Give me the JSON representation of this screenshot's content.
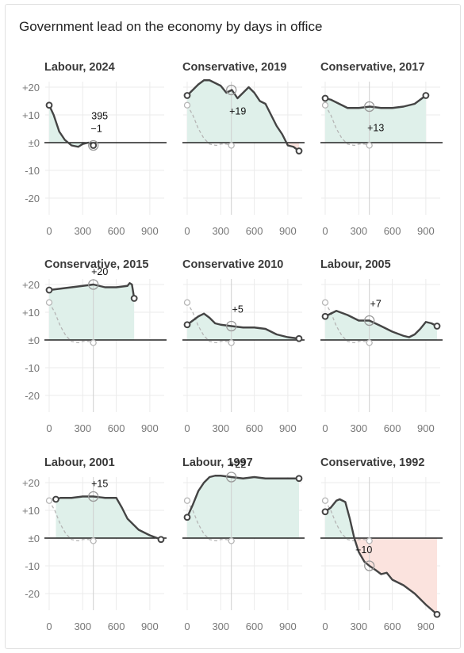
{
  "header": {
    "title": "Government lead on the economy by days in office"
  },
  "colors": {
    "positive_fill": "#dff0ea",
    "negative_fill": "#fbe3de",
    "line": "#444444",
    "reference_line": "#b5b5b5",
    "marker": "#9a9a9a"
  },
  "chart_data": [
    {
      "type": "area",
      "title": "Labour, 2024",
      "x_ticks": [
        "0",
        "300",
        "600",
        "900"
      ],
      "y_ticks": [
        "+20",
        "+10",
        "±0",
        "-10",
        "-20"
      ],
      "xlim": [
        0,
        1000
      ],
      "ylim": [
        -25,
        22
      ],
      "x": [
        0,
        40,
        90,
        140,
        200,
        260,
        300,
        350,
        395
      ],
      "y": [
        13.5,
        10,
        4,
        1,
        -1,
        -1.5,
        -0.5,
        0,
        -1
      ],
      "annotation": {
        "x": 395,
        "y": -1,
        "label": "395\n−1"
      }
    },
    {
      "type": "area",
      "title": "Conservative, 2019",
      "x_ticks": [
        "0",
        "300",
        "600",
        "900"
      ],
      "y_ticks": [],
      "xlim": [
        0,
        1000
      ],
      "ylim": [
        -25,
        22
      ],
      "x": [
        0,
        50,
        100,
        150,
        200,
        250,
        300,
        350,
        400,
        450,
        500,
        550,
        600,
        650,
        700,
        750,
        800,
        850,
        900,
        950,
        1000
      ],
      "y": [
        17,
        19,
        21,
        22.5,
        22.5,
        21.5,
        20.5,
        18,
        19,
        16,
        18,
        20,
        18,
        15,
        14,
        10,
        6,
        3,
        -1,
        -1.5,
        -3
      ],
      "annotation": {
        "x": 395,
        "y": 19,
        "label": "+19"
      }
    },
    {
      "type": "area",
      "title": "Conservative, 2017",
      "x_ticks": [
        "0",
        "300",
        "600",
        "900"
      ],
      "y_ticks": [],
      "xlim": [
        0,
        1000
      ],
      "ylim": [
        -25,
        22
      ],
      "x": [
        0,
        50,
        100,
        150,
        200,
        300,
        400,
        500,
        600,
        700,
        800,
        850,
        900
      ],
      "y": [
        16,
        15.5,
        14.5,
        13.5,
        12.5,
        12.5,
        13,
        12.5,
        12.5,
        13,
        14,
        15.5,
        17
      ],
      "annotation": {
        "x": 395,
        "y": 13,
        "label": "+13"
      }
    },
    {
      "type": "area",
      "title": "Conservative, 2015",
      "x_ticks": [
        "0",
        "300",
        "600",
        "900"
      ],
      "y_ticks": [
        "+20",
        "+10",
        "±0",
        "-10",
        "-20"
      ],
      "xlim": [
        0,
        1000
      ],
      "ylim": [
        -25,
        22
      ],
      "x": [
        0,
        100,
        200,
        300,
        395,
        500,
        600,
        700,
        720,
        740,
        760
      ],
      "y": [
        18,
        18.5,
        19,
        19.5,
        20,
        19,
        19,
        19.5,
        20.5,
        20,
        15
      ],
      "annotation": {
        "x": 395,
        "y": 20,
        "label": "+20"
      }
    },
    {
      "type": "area",
      "title": "Conservative 2010",
      "x_ticks": [
        "0",
        "300",
        "600",
        "900"
      ],
      "y_ticks": [],
      "xlim": [
        0,
        1000
      ],
      "ylim": [
        -25,
        22
      ],
      "x": [
        0,
        50,
        100,
        150,
        200,
        250,
        300,
        395,
        500,
        600,
        700,
        800,
        900,
        1000
      ],
      "y": [
        5.5,
        7,
        8.5,
        9.5,
        8,
        6,
        5.5,
        5,
        4.5,
        4.5,
        4,
        2,
        1,
        0.5
      ],
      "annotation": {
        "x": 395,
        "y": 5,
        "label": "+5"
      }
    },
    {
      "type": "area",
      "title": "Labour, 2005",
      "x_ticks": [
        "0",
        "300",
        "600",
        "900"
      ],
      "y_ticks": [],
      "xlim": [
        0,
        1000
      ],
      "ylim": [
        -25,
        22
      ],
      "x": [
        0,
        50,
        100,
        200,
        300,
        395,
        500,
        600,
        700,
        750,
        800,
        850,
        900,
        950,
        1000
      ],
      "y": [
        8.5,
        9.5,
        10.5,
        9,
        7,
        7,
        5,
        3,
        1.5,
        1,
        2,
        4,
        6.5,
        6,
        5
      ],
      "annotation": {
        "x": 395,
        "y": 7,
        "label": "+7"
      }
    },
    {
      "type": "area",
      "title": "Labour, 2001",
      "x_ticks": [
        "0",
        "300",
        "600",
        "900"
      ],
      "y_ticks": [
        "+20",
        "+10",
        "±0",
        "-10",
        "-20"
      ],
      "xlim": [
        0,
        1000
      ],
      "ylim": [
        -25,
        22
      ],
      "x": [
        60,
        100,
        200,
        300,
        395,
        500,
        600,
        650,
        700,
        800,
        900,
        1000
      ],
      "y": [
        14,
        14.5,
        14.5,
        15,
        15,
        14.5,
        14.5,
        11,
        7,
        3,
        1,
        -0.5
      ],
      "annotation": {
        "x": 395,
        "y": 15,
        "label": "+15"
      }
    },
    {
      "type": "area",
      "title": "Labour, 1997",
      "x_ticks": [
        "0",
        "300",
        "600",
        "900"
      ],
      "y_ticks": [],
      "xlim": [
        0,
        1000
      ],
      "ylim": [
        -25,
        22
      ],
      "x": [
        0,
        50,
        100,
        150,
        200,
        250,
        300,
        395,
        500,
        600,
        700,
        800,
        900,
        1000
      ],
      "y": [
        7.5,
        12,
        17,
        20,
        22,
        22.5,
        22.5,
        22,
        21.5,
        22,
        21.5,
        21.5,
        21.5,
        21.5
      ],
      "annotation": {
        "x": 395,
        "y": 22,
        "label": "+22"
      }
    },
    {
      "type": "area",
      "title": "Conservative, 1992",
      "x_ticks": [
        "0",
        "300",
        "600",
        "900"
      ],
      "y_ticks": [],
      "xlim": [
        0,
        1000
      ],
      "ylim": [
        -25,
        22
      ],
      "x": [
        0,
        50,
        100,
        130,
        180,
        220,
        260,
        300,
        350,
        395,
        450,
        500,
        550,
        600,
        700,
        800,
        900,
        1000
      ],
      "y": [
        9.5,
        11,
        13.5,
        14,
        13,
        7,
        0,
        -5,
        -8.5,
        -10,
        -11.5,
        -13,
        -12.5,
        -15,
        -17,
        -20,
        -24,
        -27.5
      ],
      "annotation": {
        "x": 395,
        "y": -10,
        "label": "−10"
      }
    }
  ]
}
